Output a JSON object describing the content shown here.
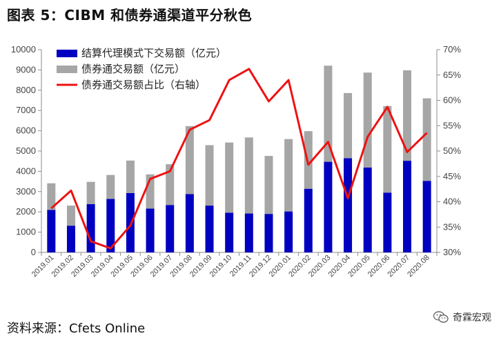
{
  "figure": {
    "title": "图表 5：CIBM 和债券通渠道平分秋色",
    "source": "资料来源：Cfets Online",
    "brand": "奇霖宏观",
    "brand_icon": "wechat-icon"
  },
  "chart_data": {
    "type": "bar",
    "categories": [
      "2019.01",
      "2019.02",
      "2019.03",
      "2019.04",
      "2019.05",
      "2019.06",
      "2019.07",
      "2019.08",
      "2019.09",
      "2019.10",
      "2019.11",
      "2019.12",
      "2020.01",
      "2020.02",
      "2020.03",
      "2020.04",
      "2020.05",
      "2020.06",
      "2020.07",
      "2020.08"
    ],
    "series": [
      {
        "name": "结算代理模式下交易额（亿元）",
        "kind": "bar",
        "axis": "left",
        "color": "#0000c0",
        "values": [
          2100,
          1320,
          2380,
          2640,
          2930,
          2160,
          2340,
          2880,
          2310,
          1960,
          1920,
          1900,
          2020,
          3140,
          4470,
          4650,
          4190,
          2950,
          4520,
          3530
        ]
      },
      {
        "name": "债券通交易额（亿元）",
        "kind": "bar",
        "axis": "left",
        "color": "#a6a6a6",
        "values": [
          1310,
          990,
          1100,
          1180,
          1600,
          1690,
          2010,
          3350,
          2980,
          3460,
          3750,
          2860,
          3570,
          2840,
          4740,
          3210,
          4680,
          4270,
          4460,
          4070
        ]
      },
      {
        "name": "债券通交易额占比（右轴）",
        "kind": "line",
        "axis": "right",
        "color": "#ee1111",
        "values": [
          38.7,
          42.2,
          32.2,
          30.8,
          35.3,
          44.5,
          46.0,
          54.2,
          56.1,
          64.0,
          66.2,
          59.8,
          64.0,
          47.3,
          51.8,
          40.7,
          52.8,
          58.7,
          49.8,
          53.6
        ]
      }
    ],
    "stacked": true,
    "y_left": {
      "min": 0,
      "max": 10000,
      "ticks": [
        "0",
        "1000",
        "2000",
        "3000",
        "4000",
        "5000",
        "6000",
        "7000",
        "8000",
        "9000",
        "10000"
      ]
    },
    "y_right": {
      "min": 30,
      "max": 70,
      "ticks": [
        "30%",
        "35%",
        "40%",
        "45%",
        "50%",
        "55%",
        "60%",
        "65%",
        "70%"
      ]
    },
    "grid": false,
    "legend": "top-left"
  }
}
